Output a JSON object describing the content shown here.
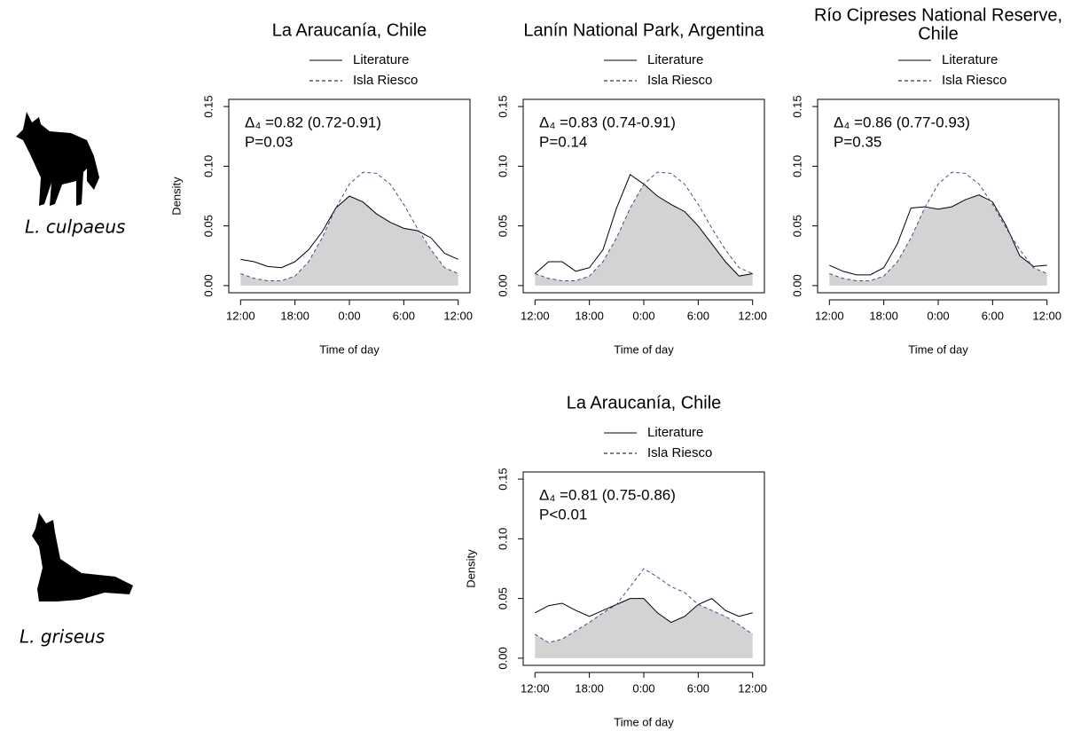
{
  "species": [
    "L. culpaeus",
    "L. griseus"
  ],
  "chart_data": [
    {
      "type": "line",
      "title": "La Araucanía, Chile",
      "ylabel": "Density",
      "xlabel": "Time of day",
      "annotations": [
        "Δ₄ =0.82 (0.72-0.91)",
        "P=0.03"
      ],
      "x": [
        12,
        13.5,
        15,
        16.5,
        18,
        19.5,
        21,
        22.5,
        24,
        25.5,
        27,
        28.5,
        30,
        31.5,
        33,
        34.5,
        36
      ],
      "series": [
        {
          "name": "Literature",
          "color": "#000000",
          "dash": false,
          "values": [
            0.022,
            0.02,
            0.016,
            0.015,
            0.02,
            0.03,
            0.045,
            0.065,
            0.075,
            0.07,
            0.06,
            0.053,
            0.048,
            0.046,
            0.04,
            0.027,
            0.022
          ]
        },
        {
          "name": "Isla Riesco",
          "color": "#000000",
          "dash": true,
          "values": [
            0.01,
            0.006,
            0.004,
            0.004,
            0.008,
            0.02,
            0.04,
            0.065,
            0.085,
            0.095,
            0.094,
            0.085,
            0.068,
            0.048,
            0.03,
            0.015,
            0.01
          ]
        }
      ],
      "xlim": [
        10.7,
        37.3
      ],
      "xticks": [
        {
          "value": 12,
          "label": "12:00"
        },
        {
          "value": 18,
          "label": "18:00"
        },
        {
          "value": 24,
          "label": "0:00"
        },
        {
          "value": 30,
          "label": "6:00"
        },
        {
          "value": 36,
          "label": "12:00"
        }
      ],
      "ylim": [
        -0.006,
        0.156
      ],
      "yticks": [
        {
          "value": 0,
          "label": "0.00"
        },
        {
          "value": 0.05,
          "label": "0.05"
        },
        {
          "value": 0.1,
          "label": "0.10"
        },
        {
          "value": 0.15,
          "label": "0.15"
        }
      ]
    },
    {
      "type": "line",
      "title": "Lanín National Park, Argentina",
      "xlabel": "Time of day",
      "annotations": [
        "Δ₄ =0.83 (0.74-0.91)",
        "P=0.14"
      ],
      "x": [
        12,
        13.5,
        15,
        16.5,
        18,
        19.5,
        21,
        22.5,
        24,
        25.5,
        27,
        28.5,
        30,
        31.5,
        33,
        34.5,
        36
      ],
      "series": [
        {
          "name": "Literature",
          "color": "#000000",
          "dash": false,
          "values": [
            0.01,
            0.02,
            0.02,
            0.012,
            0.015,
            0.03,
            0.065,
            0.093,
            0.085,
            0.075,
            0.068,
            0.062,
            0.05,
            0.035,
            0.02,
            0.008,
            0.01
          ]
        },
        {
          "name": "Isla Riesco",
          "color": "#000000",
          "dash": true,
          "values": [
            0.01,
            0.006,
            0.004,
            0.004,
            0.008,
            0.02,
            0.04,
            0.065,
            0.085,
            0.095,
            0.094,
            0.085,
            0.068,
            0.048,
            0.03,
            0.015,
            0.01
          ]
        }
      ],
      "xlim": [
        10.7,
        37.3
      ],
      "xticks": [
        {
          "value": 12,
          "label": "12:00"
        },
        {
          "value": 18,
          "label": "18:00"
        },
        {
          "value": 24,
          "label": "0:00"
        },
        {
          "value": 30,
          "label": "6:00"
        },
        {
          "value": 36,
          "label": "12:00"
        }
      ],
      "ylim": [
        -0.006,
        0.156
      ],
      "yticks": [
        {
          "value": 0,
          "label": "0.00"
        },
        {
          "value": 0.05,
          "label": "0.05"
        },
        {
          "value": 0.1,
          "label": "0.10"
        },
        {
          "value": 0.15,
          "label": "0.15"
        }
      ]
    },
    {
      "type": "line",
      "title": [
        "Río Cipreses National Reserve,",
        "Chile"
      ],
      "xlabel": "Time of day",
      "annotations": [
        "Δ₄ =0.86 (0.77-0.93)",
        "P=0.35"
      ],
      "x": [
        12,
        13.5,
        15,
        16.5,
        18,
        19.5,
        21,
        22.5,
        24,
        25.5,
        27,
        28.5,
        30,
        31.5,
        33,
        34.5,
        36
      ],
      "series": [
        {
          "name": "Literature",
          "color": "#000000",
          "dash": false,
          "values": [
            0.017,
            0.012,
            0.009,
            0.009,
            0.015,
            0.035,
            0.065,
            0.066,
            0.064,
            0.066,
            0.072,
            0.076,
            0.07,
            0.05,
            0.025,
            0.016,
            0.017
          ]
        },
        {
          "name": "Isla Riesco",
          "color": "#000000",
          "dash": true,
          "values": [
            0.01,
            0.006,
            0.004,
            0.004,
            0.008,
            0.02,
            0.04,
            0.065,
            0.085,
            0.095,
            0.094,
            0.085,
            0.068,
            0.048,
            0.03,
            0.015,
            0.01
          ]
        }
      ],
      "xlim": [
        10.7,
        37.3
      ],
      "xticks": [
        {
          "value": 12,
          "label": "12:00"
        },
        {
          "value": 18,
          "label": "18:00"
        },
        {
          "value": 24,
          "label": "0:00"
        },
        {
          "value": 30,
          "label": "6:00"
        },
        {
          "value": 36,
          "label": "12:00"
        }
      ],
      "ylim": [
        -0.006,
        0.156
      ],
      "yticks": [
        {
          "value": 0,
          "label": "0.00"
        },
        {
          "value": 0.05,
          "label": "0.05"
        },
        {
          "value": 0.1,
          "label": "0.10"
        },
        {
          "value": 0.15,
          "label": "0.15"
        }
      ]
    },
    {
      "type": "line",
      "title": "La Araucanía, Chile",
      "ylabel": "Density",
      "xlabel": "Time of day",
      "annotations": [
        "Δ₄ =0.81 (0.75-0.86)",
        "P<0.01"
      ],
      "x": [
        12,
        13.5,
        15,
        16.5,
        18,
        19.5,
        21,
        22.5,
        24,
        25.5,
        27,
        28.5,
        30,
        31.5,
        33,
        34.5,
        36
      ],
      "series": [
        {
          "name": "Literature",
          "color": "#000000",
          "dash": false,
          "values": [
            0.038,
            0.044,
            0.046,
            0.04,
            0.035,
            0.04,
            0.045,
            0.05,
            0.05,
            0.038,
            0.03,
            0.035,
            0.045,
            0.05,
            0.04,
            0.035,
            0.038
          ]
        },
        {
          "name": "Isla Riesco",
          "color": "#000000",
          "dash": true,
          "values": [
            0.02,
            0.013,
            0.016,
            0.023,
            0.03,
            0.038,
            0.045,
            0.06,
            0.075,
            0.068,
            0.06,
            0.055,
            0.045,
            0.04,
            0.035,
            0.028,
            0.02
          ]
        }
      ],
      "xlim": [
        10.7,
        37.3
      ],
      "xticks": [
        {
          "value": 12,
          "label": "12:00"
        },
        {
          "value": 18,
          "label": "18:00"
        },
        {
          "value": 24,
          "label": "0:00"
        },
        {
          "value": 30,
          "label": "6:00"
        },
        {
          "value": 36,
          "label": "12:00"
        }
      ],
      "ylim": [
        -0.006,
        0.156
      ],
      "yticks": [
        {
          "value": 0,
          "label": "0.00"
        },
        {
          "value": 0.05,
          "label": "0.05"
        },
        {
          "value": 0.1,
          "label": "0.10"
        },
        {
          "value": 0.15,
          "label": "0.15"
        }
      ]
    }
  ]
}
